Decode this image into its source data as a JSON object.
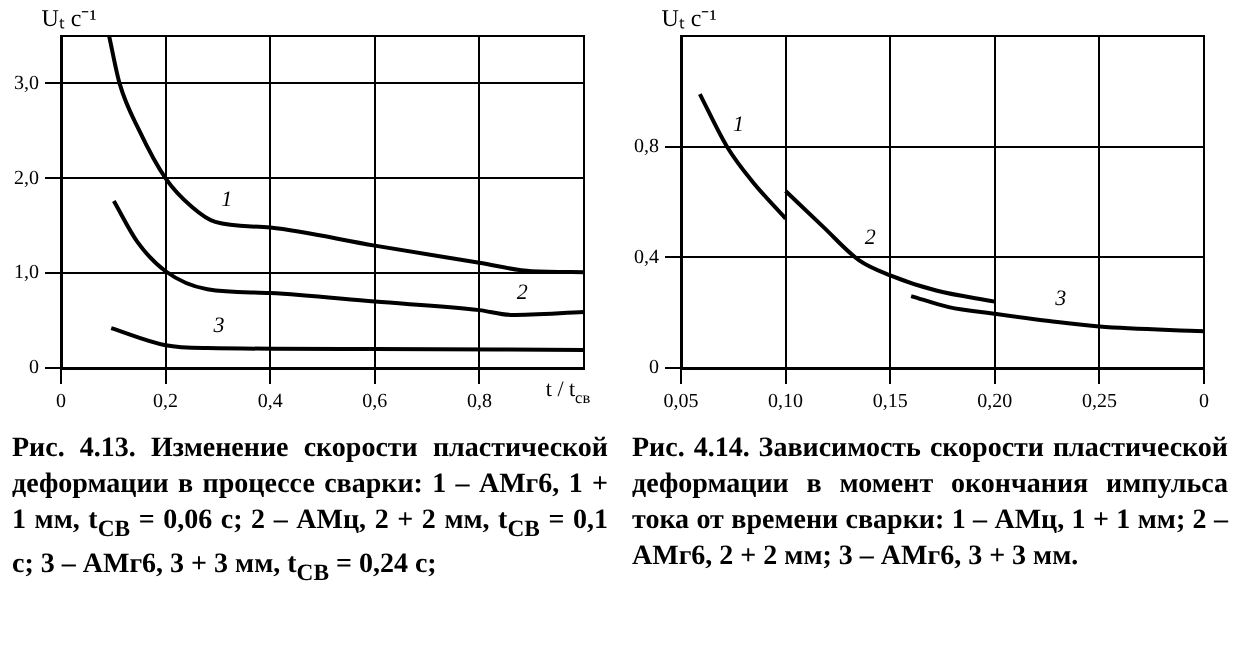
{
  "chart_data": [
    {
      "type": "line",
      "title": "Рис. 4.13. Изменение скорости пластической деформации в процессе сварки: 1 – АМг6, 1 + 1 мм, t$_{СВ}$ = 0,06 с; 2 – АМц, 2 + 2 мм, t$_{СВ}$ = 0,1 с; 3 – АМг6, 3 + 3 мм, t$_{СВ}$ = 0,24 с;",
      "xlabel": "t / t$_{св}$",
      "ylabel": "Uₜ с⁻¹",
      "xlim": [
        0,
        1.0
      ],
      "xticks": [
        0,
        {
          "value": 0.2,
          "label": "0,2"
        },
        {
          "value": 0.4,
          "label": "0,4"
        },
        {
          "value": 0.6,
          "label": "0,6"
        },
        {
          "value": 0.8,
          "label": "0,8"
        }
      ],
      "ylim": [
        0,
        3.5
      ],
      "yticks": [
        0,
        {
          "value": 1,
          "label": "1,0"
        },
        {
          "value": 2,
          "label": "2,0"
        },
        {
          "value": 3,
          "label": "3,0"
        }
      ],
      "grid": true,
      "legend": false,
      "series": [
        {
          "name": "1",
          "color": "#000000",
          "x": [
            0.092,
            0.112,
            0.15,
            0.2,
            0.25,
            0.295,
            0.4,
            0.6,
            0.8,
            0.9,
            1.0
          ],
          "values": [
            3.5,
            3.0,
            2.5,
            2.0,
            1.7,
            1.54,
            1.48,
            1.29,
            1.11,
            1.02,
            1.01
          ]
        },
        {
          "name": "2",
          "color": "#000000",
          "x": [
            0.101,
            0.146,
            0.2,
            0.28,
            0.4,
            0.6,
            0.8,
            0.86,
            1.0
          ],
          "values": [
            1.76,
            1.33,
            1.02,
            0.83,
            0.79,
            0.7,
            0.61,
            0.56,
            0.59
          ]
        },
        {
          "name": "3",
          "color": "#000000",
          "x": [
            0.096,
            0.2,
            0.28,
            0.6,
            1.0
          ],
          "values": [
            0.42,
            0.24,
            0.21,
            0.2,
            0.19
          ]
        }
      ]
    },
    {
      "type": "line",
      "title": "Рис. 4.14. Зависимость скорости пластической деформации в момент окончания импульса тока от времени сварки: 1 – АМц, 1 + 1 мм; 2 – АМг6, 2 + 2 мм; 3 – АМг6, 3 + 3 мм.",
      "ylabel": "Uₜ с⁻¹",
      "xlim": [
        0.05,
        0.3
      ],
      "xticks": [
        {
          "value": 0.05,
          "label": "0,05"
        },
        {
          "value": 0.1,
          "label": "0,10"
        },
        {
          "value": 0.15,
          "label": "0,15"
        },
        {
          "value": 0.2,
          "label": "0,20"
        },
        {
          "value": 0.25,
          "label": "0,25"
        },
        {
          "value": 0.3,
          "label": "0"
        }
      ],
      "ylim": [
        0,
        1.2
      ],
      "yticks": [
        0,
        {
          "value": 0.4,
          "label": "0,4"
        },
        {
          "value": 0.8,
          "label": "0,8"
        }
      ],
      "grid": true,
      "legend": false,
      "series": [
        {
          "name": "1",
          "color": "#000000",
          "x": [
            0.059,
            0.072,
            0.084,
            0.1
          ],
          "values": [
            0.99,
            0.8,
            0.675,
            0.54
          ]
        },
        {
          "name": "2",
          "color": "#000000",
          "x": [
            0.1,
            0.118,
            0.135,
            0.15,
            0.172,
            0.2
          ],
          "values": [
            0.64,
            0.51,
            0.39,
            0.335,
            0.28,
            0.24
          ]
        },
        {
          "name": "3",
          "color": "#000000",
          "x": [
            0.16,
            0.178,
            0.2,
            0.226,
            0.25,
            0.3
          ],
          "values": [
            0.26,
            0.22,
            0.196,
            0.17,
            0.15,
            0.133
          ]
        }
      ]
    }
  ]
}
